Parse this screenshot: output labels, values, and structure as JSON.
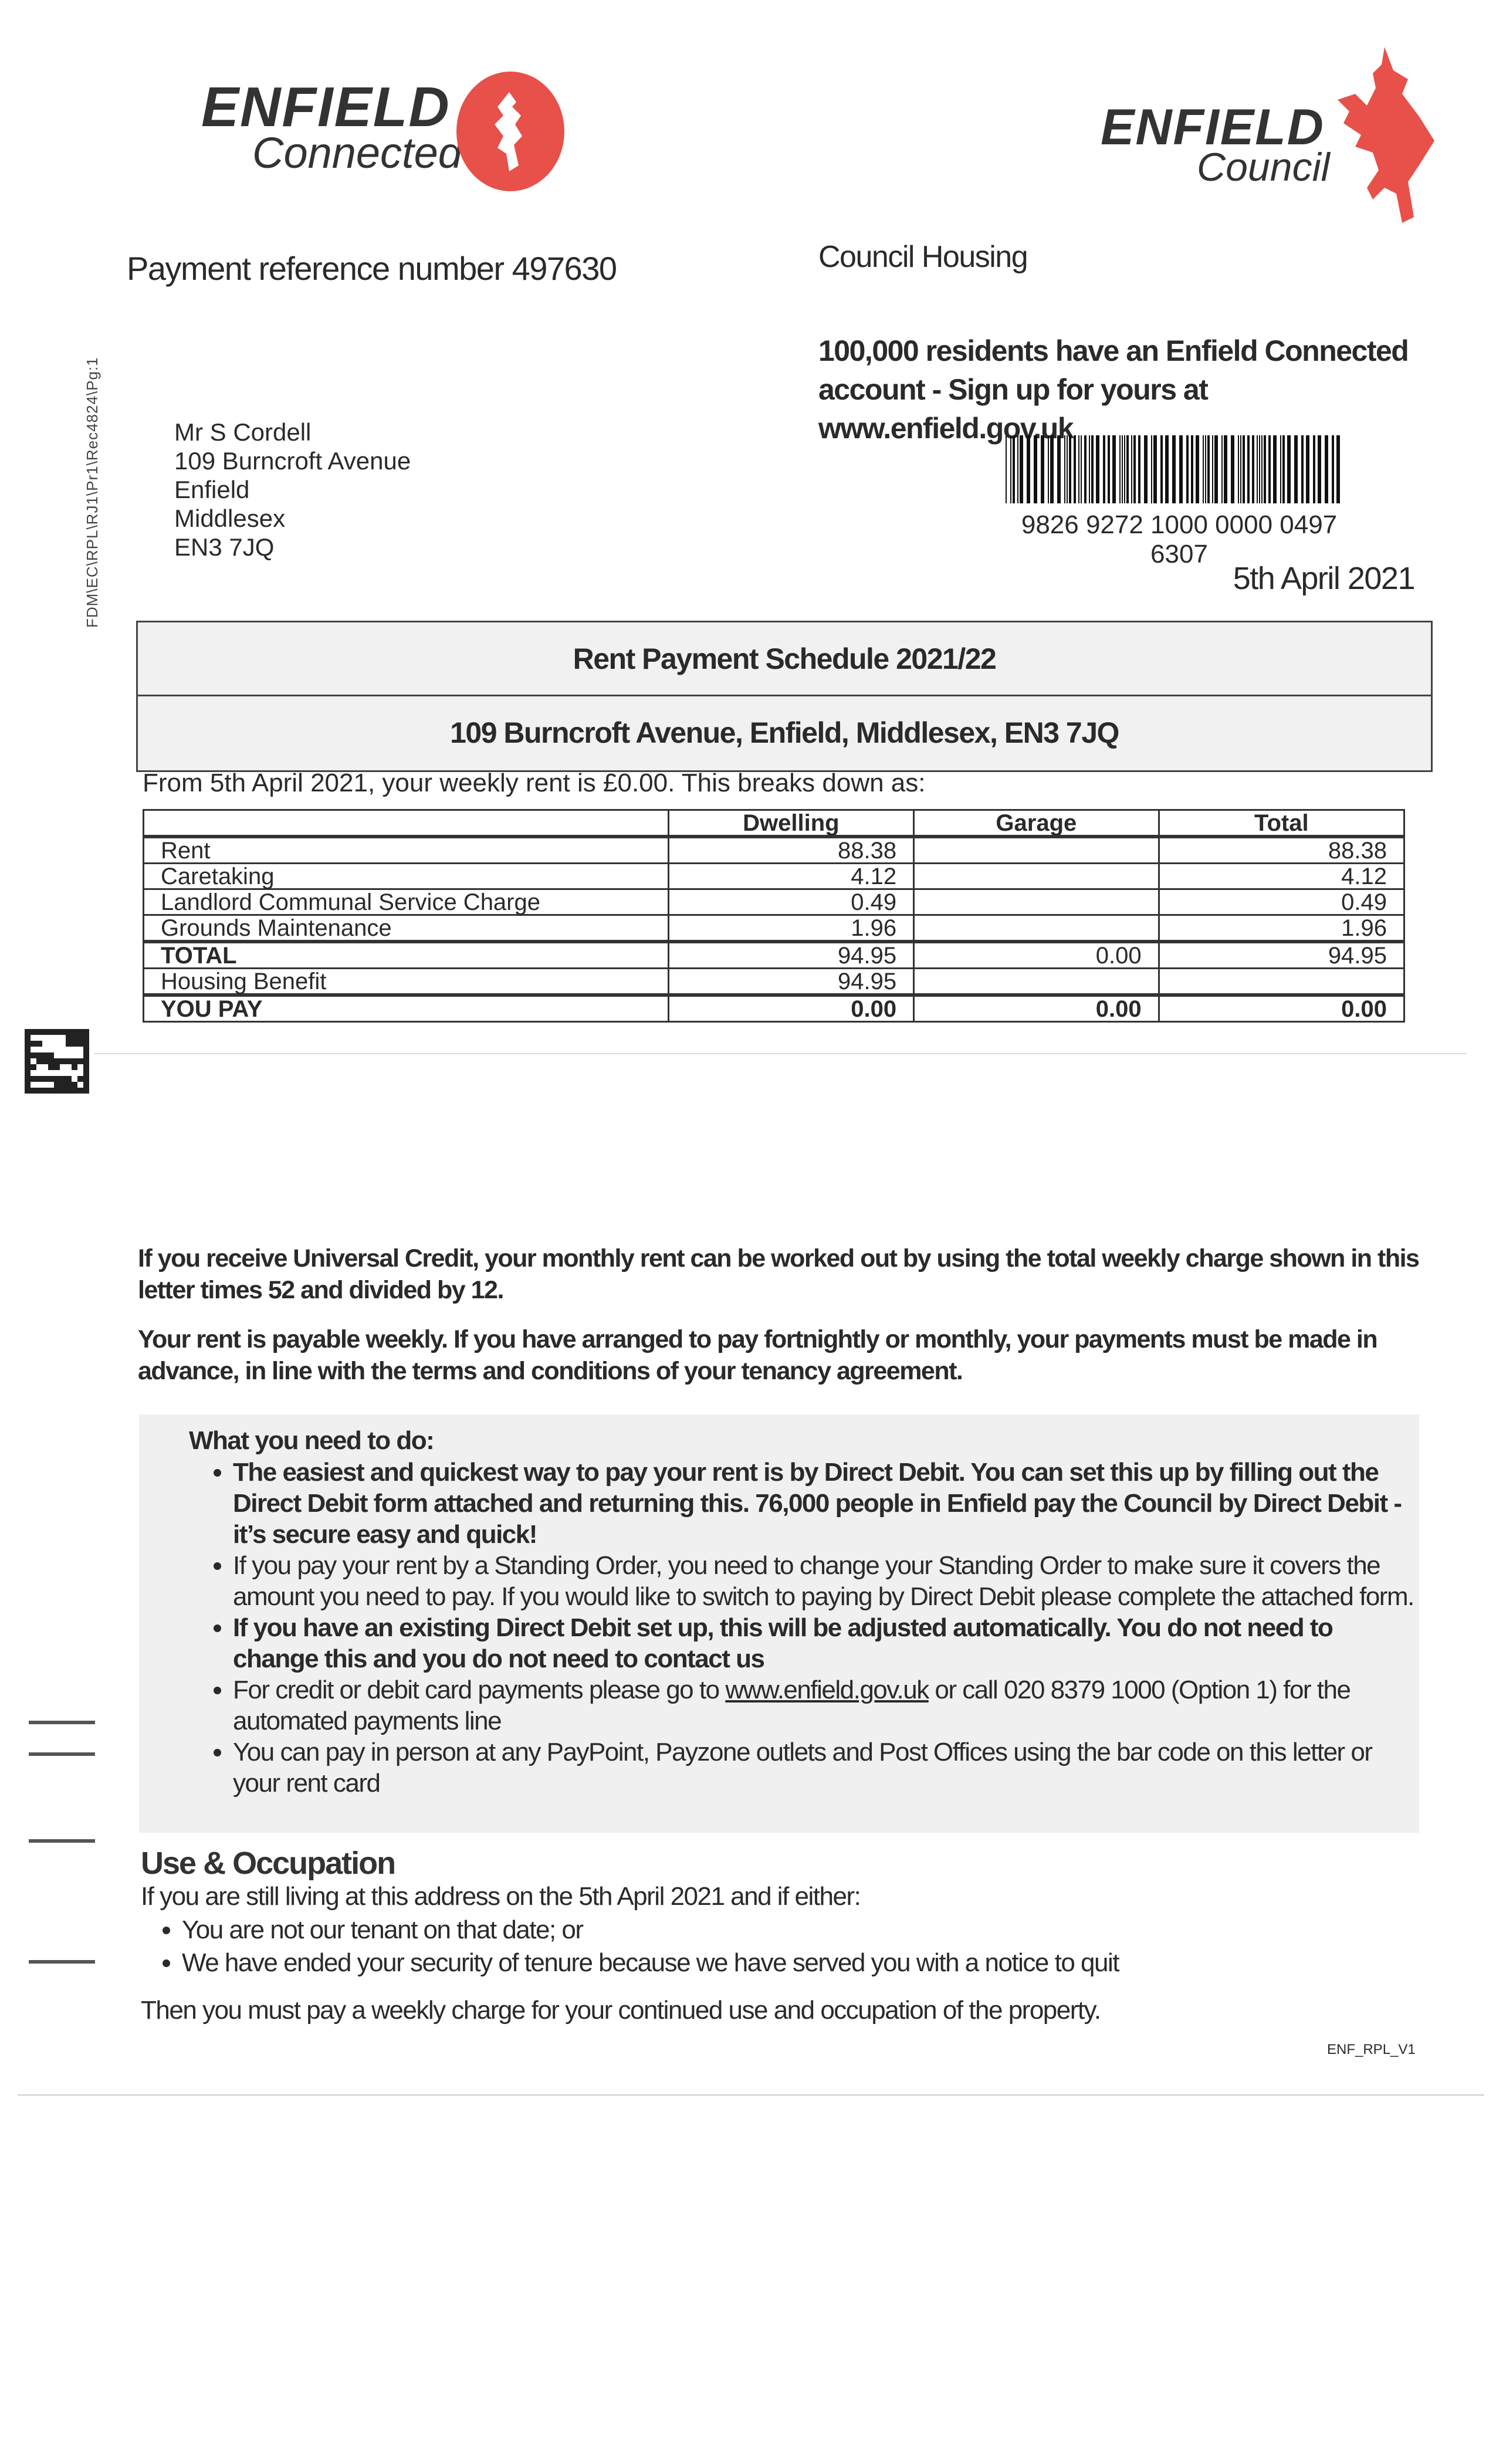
{
  "logos": {
    "connected_word": "ENFIELD",
    "connected_sub": "Connected",
    "council_word": "ENFIELD",
    "council_sub": "Council",
    "brand_red": "#e8504a"
  },
  "header": {
    "payment_reference": "Payment reference number 497630",
    "department": "Council Housing",
    "promo": "100,000 residents have an Enfield Connected account - Sign up for yours at www.enfield.gov.uk",
    "barcode_number": "9826 9272 1000 0000 0497 6307",
    "date": "5th April 2021",
    "side_code": "FDM\\EC\\RPL\\RJ1\\Pr1\\Rec4824\\Pg:1"
  },
  "recipient": {
    "lines": [
      "Mr S Cordell",
      "109 Burncroft Avenue",
      "Enfield",
      "Middlesex",
      "EN3 7JQ"
    ]
  },
  "schedule": {
    "title": "Rent Payment Schedule 2021/22",
    "property": "109 Burncroft Avenue, Enfield, Middlesex, EN3 7JQ",
    "breakdown_intro": "From 5th April 2021, your weekly rent is £0.00. This breaks down as:",
    "columns": [
      "",
      "Dwelling",
      "Garage",
      "Total"
    ],
    "rows": [
      [
        "Rent",
        "88.38",
        "",
        "88.38"
      ],
      [
        "Caretaking",
        "4.12",
        "",
        "4.12"
      ],
      [
        "Landlord Communal Service Charge",
        "0.49",
        "",
        "0.49"
      ],
      [
        "Grounds Maintenance",
        "1.96",
        "",
        "1.96"
      ],
      [
        "TOTAL",
        "94.95",
        "0.00",
        "94.95"
      ],
      [
        "Housing Benefit",
        "94.95",
        "",
        ""
      ],
      [
        "YOU PAY",
        "0.00",
        "0.00",
        "0.00"
      ]
    ]
  },
  "info": {
    "universal_credit": "If you receive Universal Credit, your monthly rent can be worked out by using the total weekly charge shown in this letter times 52 and divided by 12.",
    "payable_weekly": "Your rent is payable weekly. If you have arranged to pay fortnightly or monthly, your payments must be made in advance, in line with the terms and conditions of your tenancy agreement."
  },
  "todo": {
    "title": "What you need to do:",
    "items": [
      "The easiest and quickest way to pay your rent is by Direct Debit. You can set this up by filling out the Direct Debit form attached and returning this. 76,000 people in Enfield pay the Council by Direct Debit - it’s secure easy and quick!",
      "If you pay your rent by a Standing Order, you need to change your Standing Order to make sure it covers the amount you need to pay. If you would like to switch to paying by Direct Debit please complete the attached form.",
      "If you have an existing Direct Debit set up, this will be adjusted automatically. You do not need to change this and you do not need to contact us",
      "You can pay in person at any PayPoint, Payzone outlets and Post Offices using the bar code on this letter or your rent card"
    ],
    "card_item": {
      "before": "For credit or debit card payments please go to ",
      "link": "www.enfield.gov.uk",
      "after": " or call 020 8379 1000 (Option 1) for the automated payments line"
    }
  },
  "use_occupation": {
    "title": "Use & Occupation",
    "intro": "If you are still living at this address on the 5th April 2021 and if either:",
    "items": [
      "You are not our tenant on that date; or",
      "We have ended your security of tenure because we have served you with a notice to quit"
    ],
    "conclusion": "Then you must pay a weekly charge for your continued use and occupation of the property."
  },
  "footer": {
    "form_code": "ENF_RPL_V1"
  }
}
